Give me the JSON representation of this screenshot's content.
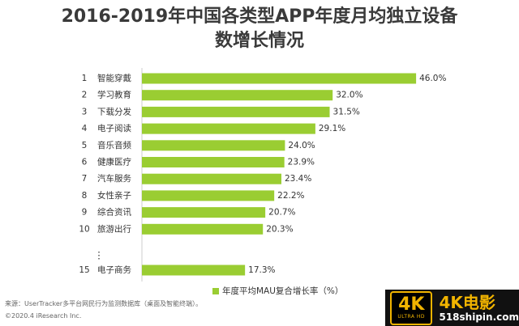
{
  "title_line1": "2016-2019年中国各类型APP年度月均独立设备",
  "title_line2": "数增长情况",
  "colors": {
    "bar": "#9acd32",
    "text": "#333333",
    "title": "#3a3a3a"
  },
  "chart_data": {
    "type": "bar",
    "orientation": "horizontal",
    "ranks": [
      "1",
      "2",
      "3",
      "4",
      "5",
      "6",
      "7",
      "8",
      "9",
      "10",
      "15"
    ],
    "categories": [
      "智能穿戴",
      "学习教育",
      "下载分发",
      "电子阅读",
      "音乐音频",
      "健康医疗",
      "汽车服务",
      "女性亲子",
      "综合资讯",
      "旅游出行",
      "电子商务"
    ],
    "values": [
      46.0,
      32.0,
      31.5,
      29.1,
      24.0,
      23.9,
      23.4,
      22.2,
      20.7,
      20.3,
      17.3
    ],
    "data_labels": [
      "46.0%",
      "32.0%",
      "31.5%",
      "29.1%",
      "24.0%",
      "23.9%",
      "23.4%",
      "22.2%",
      "20.7%",
      "20.3%",
      "17.3%"
    ],
    "ellipsis": "⋮",
    "legend": "年度平均MAU复合增长率（%）",
    "legend_position": "bottom",
    "grid": false
  },
  "source": "来源：UserTracker多平台网民行为监测数据库（桌面及智能终端）。",
  "copyright": "©2020.4 iResearch Inc.",
  "watermark": {
    "badge_top": "4K",
    "badge_bottom": "ULTRA HD",
    "brand": "4K电影",
    "site": "518shipin.com"
  }
}
